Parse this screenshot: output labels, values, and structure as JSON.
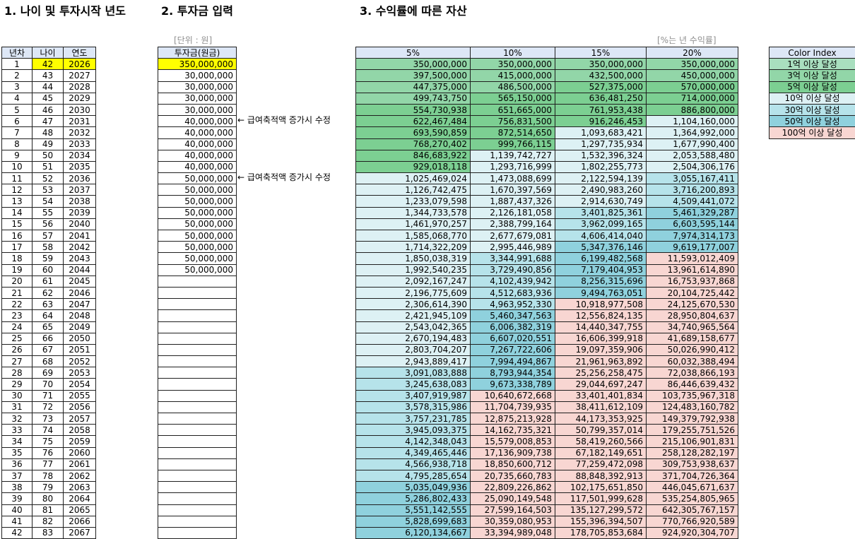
{
  "titles": {
    "age_year": "1. 나이 및 투자시작 년도",
    "investment": "2. 투자금 입력",
    "assets": "3. 수익률에 따른 자산"
  },
  "notes": {
    "unit": "[단위 : 원]",
    "rate": "[%는 년 수익률]"
  },
  "annotations": [
    "← 급여축적액 증가시 수정",
    "← 급여축적액 증가시 수정"
  ],
  "left_table": {
    "headers": [
      "년차",
      "나이",
      "연도"
    ],
    "rows": [
      [
        "1",
        "42",
        "2026"
      ],
      [
        "2",
        "43",
        "2027"
      ],
      [
        "3",
        "44",
        "2028"
      ],
      [
        "4",
        "45",
        "2029"
      ],
      [
        "5",
        "46",
        "2030"
      ],
      [
        "6",
        "47",
        "2031"
      ],
      [
        "7",
        "48",
        "2032"
      ],
      [
        "8",
        "49",
        "2033"
      ],
      [
        "9",
        "50",
        "2034"
      ],
      [
        "10",
        "51",
        "2035"
      ],
      [
        "11",
        "52",
        "2036"
      ],
      [
        "12",
        "53",
        "2037"
      ],
      [
        "13",
        "54",
        "2038"
      ],
      [
        "14",
        "55",
        "2039"
      ],
      [
        "15",
        "56",
        "2040"
      ],
      [
        "16",
        "57",
        "2041"
      ],
      [
        "17",
        "58",
        "2042"
      ],
      [
        "18",
        "59",
        "2043"
      ],
      [
        "19",
        "60",
        "2044"
      ],
      [
        "20",
        "61",
        "2045"
      ],
      [
        "21",
        "62",
        "2046"
      ],
      [
        "22",
        "63",
        "2047"
      ],
      [
        "23",
        "64",
        "2048"
      ],
      [
        "24",
        "65",
        "2049"
      ],
      [
        "25",
        "66",
        "2050"
      ],
      [
        "26",
        "67",
        "2051"
      ],
      [
        "27",
        "68",
        "2052"
      ],
      [
        "28",
        "69",
        "2053"
      ],
      [
        "29",
        "70",
        "2054"
      ],
      [
        "30",
        "71",
        "2055"
      ],
      [
        "31",
        "72",
        "2056"
      ],
      [
        "32",
        "73",
        "2057"
      ],
      [
        "33",
        "74",
        "2058"
      ],
      [
        "34",
        "75",
        "2059"
      ],
      [
        "35",
        "76",
        "2060"
      ],
      [
        "36",
        "77",
        "2061"
      ],
      [
        "37",
        "78",
        "2062"
      ],
      [
        "38",
        "79",
        "2063"
      ],
      [
        "39",
        "80",
        "2064"
      ],
      [
        "40",
        "81",
        "2065"
      ],
      [
        "41",
        "82",
        "2066"
      ],
      [
        "42",
        "83",
        "2067"
      ]
    ]
  },
  "invest_table": {
    "header": "투자금(원금)",
    "values": [
      "350,000,000",
      "30,000,000",
      "30,000,000",
      "30,000,000",
      "30,000,000",
      "40,000,000",
      "40,000,000",
      "40,000,000",
      "40,000,000",
      "40,000,000",
      "50,000,000",
      "50,000,000",
      "50,000,000",
      "50,000,000",
      "50,000,000",
      "50,000,000",
      "50,000,000",
      "50,000,000",
      "50,000,000",
      "",
      "",
      "",
      "",
      "",
      "",
      "",
      "",
      "",
      "",
      "",
      "",
      "",
      "",
      "",
      "",
      "",
      "",
      "",
      "",
      "",
      "",
      ""
    ]
  },
  "asset_table": {
    "headers": [
      "5%",
      "10%",
      "15%",
      "20%"
    ],
    "rows": [
      [
        "350,000,000",
        "350,000,000",
        "350,000,000",
        "350,000,000"
      ],
      [
        "397,500,000",
        "415,000,000",
        "432,500,000",
        "450,000,000"
      ],
      [
        "447,375,000",
        "486,500,000",
        "527,375,000",
        "570,000,000"
      ],
      [
        "499,743,750",
        "565,150,000",
        "636,481,250",
        "714,000,000"
      ],
      [
        "554,730,938",
        "651,665,000",
        "761,953,438",
        "886,800,000"
      ],
      [
        "622,467,484",
        "756,831,500",
        "916,246,453",
        "1,104,160,000"
      ],
      [
        "693,590,859",
        "872,514,650",
        "1,093,683,421",
        "1,364,992,000"
      ],
      [
        "768,270,402",
        "999,766,115",
        "1,297,735,934",
        "1,677,990,400"
      ],
      [
        "846,683,922",
        "1,139,742,727",
        "1,532,396,324",
        "2,053,588,480"
      ],
      [
        "929,018,118",
        "1,293,716,999",
        "1,802,255,773",
        "2,504,306,176"
      ],
      [
        "1,025,469,024",
        "1,473,088,699",
        "2,122,594,139",
        "3,055,167,411"
      ],
      [
        "1,126,742,475",
        "1,670,397,569",
        "2,490,983,260",
        "3,716,200,893"
      ],
      [
        "1,233,079,598",
        "1,887,437,326",
        "2,914,630,749",
        "4,509,441,072"
      ],
      [
        "1,344,733,578",
        "2,126,181,058",
        "3,401,825,361",
        "5,461,329,287"
      ],
      [
        "1,461,970,257",
        "2,388,799,164",
        "3,962,099,165",
        "6,603,595,144"
      ],
      [
        "1,585,068,770",
        "2,677,679,081",
        "4,606,414,040",
        "7,974,314,173"
      ],
      [
        "1,714,322,209",
        "2,995,446,989",
        "5,347,376,146",
        "9,619,177,007"
      ],
      [
        "1,850,038,319",
        "3,344,991,688",
        "6,199,482,568",
        "11,593,012,409"
      ],
      [
        "1,992,540,235",
        "3,729,490,856",
        "7,179,404,953",
        "13,961,614,890"
      ],
      [
        "2,092,167,247",
        "4,102,439,942",
        "8,256,315,696",
        "16,753,937,868"
      ],
      [
        "2,196,775,609",
        "4,512,683,936",
        "9,494,763,051",
        "20,104,725,442"
      ],
      [
        "2,306,614,390",
        "4,963,952,330",
        "10,918,977,508",
        "24,125,670,530"
      ],
      [
        "2,421,945,109",
        "5,460,347,563",
        "12,556,824,135",
        "28,950,804,637"
      ],
      [
        "2,543,042,365",
        "6,006,382,319",
        "14,440,347,755",
        "34,740,965,564"
      ],
      [
        "2,670,194,483",
        "6,607,020,551",
        "16,606,399,918",
        "41,689,158,677"
      ],
      [
        "2,803,704,207",
        "7,267,722,606",
        "19,097,359,906",
        "50,026,990,412"
      ],
      [
        "2,943,889,417",
        "7,994,494,867",
        "21,961,963,892",
        "60,032,388,494"
      ],
      [
        "3,091,083,888",
        "8,793,944,354",
        "25,256,258,475",
        "72,038,866,193"
      ],
      [
        "3,245,638,083",
        "9,673,338,789",
        "29,044,697,247",
        "86,446,639,432"
      ],
      [
        "3,407,919,987",
        "10,640,672,668",
        "33,401,401,834",
        "103,735,967,318"
      ],
      [
        "3,578,315,986",
        "11,704,739,935",
        "38,411,612,109",
        "124,483,160,782"
      ],
      [
        "3,757,231,785",
        "12,875,213,928",
        "44,173,353,925",
        "149,379,792,938"
      ],
      [
        "3,945,093,375",
        "14,162,735,321",
        "50,799,357,014",
        "179,255,751,526"
      ],
      [
        "4,142,348,043",
        "15,579,008,853",
        "58,419,260,566",
        "215,106,901,831"
      ],
      [
        "4,349,465,446",
        "17,136,909,738",
        "67,182,149,651",
        "258,128,282,197"
      ],
      [
        "4,566,938,718",
        "18,850,600,712",
        "77,259,472,098",
        "309,753,938,637"
      ],
      [
        "4,795,285,654",
        "20,735,660,783",
        "88,848,392,913",
        "371,704,726,364"
      ],
      [
        "5,035,049,936",
        "22,809,226,862",
        "102,175,651,850",
        "446,045,671,637"
      ],
      [
        "5,286,802,433",
        "25,090,149,548",
        "117,501,999,628",
        "535,254,805,965"
      ],
      [
        "5,551,142,555",
        "27,599,164,503",
        "135,127,299,572",
        "642,305,767,157"
      ],
      [
        "5,828,699,683",
        "30,359,080,953",
        "155,396,394,507",
        "770,766,920,589"
      ],
      [
        "6,120,134,667",
        "33,394,989,048",
        "178,705,853,684",
        "924,920,304,707"
      ]
    ]
  },
  "legend": {
    "title": "Color Index",
    "items": [
      {
        "label": "1억 이상 달성",
        "color": "#a9dfbf"
      },
      {
        "label": "3억 이상 달성",
        "color": "#92d6a8"
      },
      {
        "label": "5억 이상 달성",
        "color": "#7ccf92"
      },
      {
        "label": "10억 이상 달성",
        "color": "#ddf1f4"
      },
      {
        "label": "30억 이상 달성",
        "color": "#b6e3ea"
      },
      {
        "label": "50억 이상 달성",
        "color": "#8fd1dd"
      },
      {
        "label": "100억 이상 달성",
        "color": "#f8d6d2"
      }
    ]
  },
  "colors": {
    "header_bg": "#dde7f6",
    "highlight": "#ffff00"
  }
}
